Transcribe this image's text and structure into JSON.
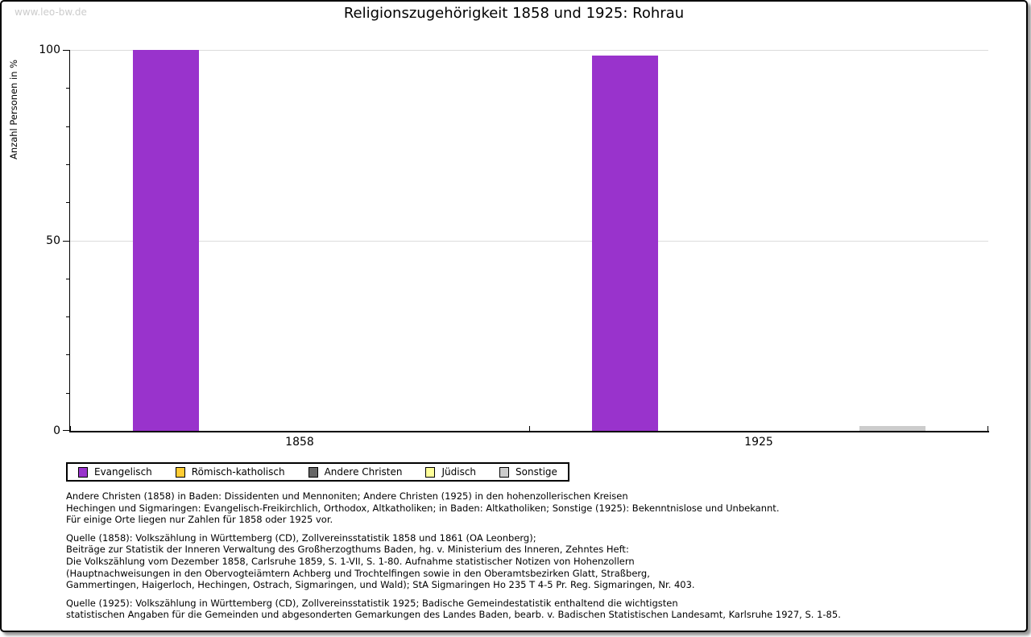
{
  "page": {
    "watermark": "www.leo-bw.de",
    "title": "Religionszugehörigkeit 1858 und 1925: Rohrau"
  },
  "chart_data": {
    "type": "bar",
    "title": "Religionszugehörigkeit 1858 und 1925: Rohrau",
    "categories": [
      "1858",
      "1925"
    ],
    "series": [
      {
        "name": "Evangelisch",
        "color": "#9933cc",
        "values": [
          100,
          98.5
        ]
      },
      {
        "name": "Römisch-katholisch",
        "color": "#ffcc33",
        "values": [
          0,
          0
        ]
      },
      {
        "name": "Andere Christen",
        "color": "#666666",
        "values": [
          0,
          0
        ]
      },
      {
        "name": "Jüdisch",
        "color": "#ffff99",
        "values": [
          0,
          0
        ]
      },
      {
        "name": "Sonstige",
        "color": "#cccccc",
        "values": [
          0,
          1.3
        ]
      }
    ],
    "xlabel": "",
    "ylabel": "Anzahl Personen in %",
    "ylim": [
      0,
      100
    ],
    "yticks": [
      0,
      50,
      100
    ],
    "minor_tick_step": 10,
    "grid": "horizontal gridlines at 50 and 100",
    "legend_position": "below",
    "gridline_color": "#dcdcdc"
  },
  "footnotes": [
    {
      "lines": [
        "Andere Christen (1858) in Baden: Dissidenten und Mennoniten; Andere Christen (1925) in den hohenzollerischen Kreisen",
        "Hechingen und Sigmaringen: Evangelisch-Freikirchlich, Orthodox, Altkatholiken; in Baden: Altkatholiken; Sonstige (1925): Bekenntnislose und Unbekannt.",
        "Für einige Orte liegen nur Zahlen für 1858 oder 1925 vor."
      ]
    },
    {
      "lines": [
        "Quelle (1858): Volkszählung in Württemberg (CD), Zollvereinsstatistik 1858 und 1861 (OA Leonberg);",
        "Beiträge zur Statistik der Inneren Verwaltung des Großherzogthums Baden, hg. v. Ministerium des Inneren, Zehntes Heft:",
        "Die Volkszählung vom Dezember 1858, Carlsruhe 1859, S. 1-VII, S. 1-80. Aufnahme statistischer Notizen von Hohenzollern",
        "(Hauptnachweisungen in den Obervogteiämtern Achberg und Trochtelfingen sowie in den Oberamtsbezirken Glatt, Straßberg,",
        "Gammertingen, Haigerloch, Hechingen, Ostrach, Sigmaringen, und Wald); StA Sigmaringen Ho 235 T 4-5 Pr. Reg. Sigmaringen, Nr. 403."
      ]
    },
    {
      "lines": [
        "Quelle (1925): Volkszählung in Württemberg (CD), Zollvereinsstatistik 1925; Badische Gemeindestatistik enthaltend die wichtigsten",
        "statistischen Angaben für die Gemeinden und abgesonderten Gemarkungen des Landes Baden, bearb. v. Badischen Statistischen Landesamt, Karlsruhe 1927, S. 1-85."
      ]
    }
  ]
}
